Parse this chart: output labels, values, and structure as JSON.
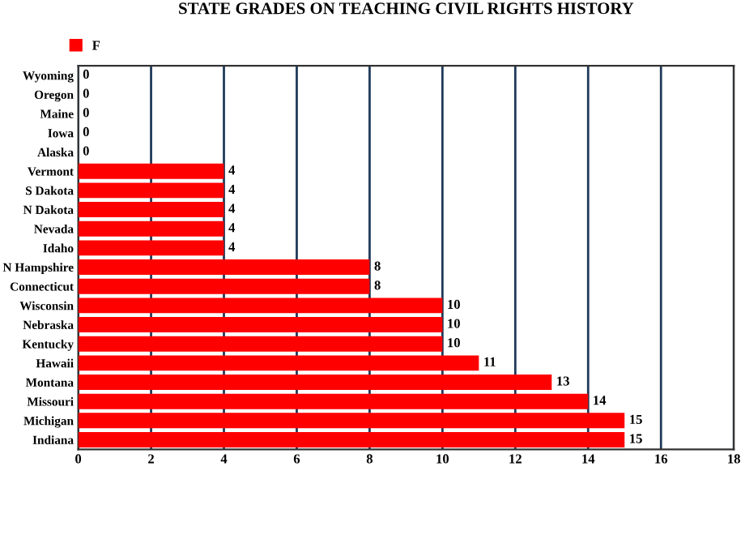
{
  "chart_data": {
    "type": "bar",
    "orientation": "horizontal",
    "title": "STATE GRADES ON TEACHING CIVIL RIGHTS HISTORY",
    "categories": [
      "Wyoming",
      "Oregon",
      "Maine",
      "Iowa",
      "Alaska",
      "Vermont",
      "S Dakota",
      "N Dakota",
      "Nevada",
      "Idaho",
      "N Hampshire",
      "Connecticut",
      "Wisconsin",
      "Nebraska",
      "Kentucky",
      "Hawaii",
      "Montana",
      "Missouri",
      "Michigan",
      "Indiana"
    ],
    "series": [
      {
        "name": "F",
        "color": "#ff0000",
        "values": [
          0,
          0,
          0,
          0,
          0,
          4,
          4,
          4,
          4,
          4,
          8,
          8,
          10,
          10,
          10,
          11,
          13,
          14,
          15,
          15
        ]
      }
    ],
    "xlim": [
      0,
      18
    ],
    "xticks": [
      0,
      2,
      4,
      6,
      8,
      10,
      12,
      14,
      16,
      18
    ],
    "grid": "x",
    "legend": "top left",
    "data_labels": true
  }
}
